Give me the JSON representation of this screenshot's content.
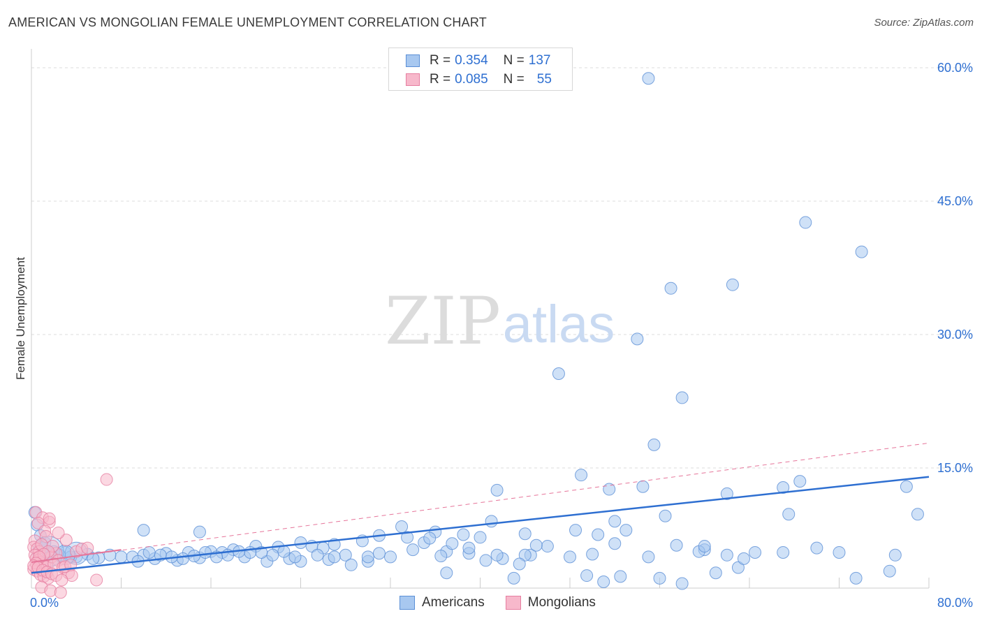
{
  "title": "AMERICAN VS MONGOLIAN FEMALE UNEMPLOYMENT CORRELATION CHART",
  "source": "Source: ZipAtlas.com",
  "watermark": {
    "zip": "ZIP",
    "atlas": "atlas"
  },
  "legend": {
    "rows": [
      {
        "r_label": "R =",
        "r_value": "0.354",
        "n_label": "N =",
        "n_value": "137"
      },
      {
        "r_label": "R =",
        "r_value": "0.085",
        "n_label": "N =",
        "n_value": "55"
      }
    ]
  },
  "chart_data": {
    "type": "scatter",
    "title": "AMERICAN VS MONGOLIAN FEMALE UNEMPLOYMENT CORRELATION CHART",
    "xlabel": "",
    "ylabel": "Female Unemployment",
    "xlim": [
      0,
      80
    ],
    "ylim": [
      0,
      63
    ],
    "x_tick_labels": [
      "0.0%",
      "80.0%"
    ],
    "y_ticks": [
      15,
      30,
      45,
      60
    ],
    "y_tick_labels": [
      "15.0%",
      "30.0%",
      "45.0%",
      "60.0%"
    ],
    "grid": true,
    "legend_position": "top-center",
    "series": [
      {
        "name": "Americans",
        "color": "#a8c8f0",
        "edge": "#5b8fd6",
        "trend_color": "#2e6fd1",
        "r": 0.354,
        "n": 137,
        "trend": {
          "x": [
            0,
            80
          ],
          "y": [
            3.2,
            14.0
          ],
          "style": "solid"
        },
        "points": [
          [
            55,
            58.8
          ],
          [
            69,
            42.6
          ],
          [
            74,
            39.3
          ],
          [
            57,
            35.2
          ],
          [
            62.5,
            35.6
          ],
          [
            54,
            29.5
          ],
          [
            47,
            25.6
          ],
          [
            58,
            22.9
          ],
          [
            55.5,
            17.6
          ],
          [
            49,
            14.2
          ],
          [
            41.5,
            12.5
          ],
          [
            51.5,
            12.6
          ],
          [
            54.5,
            12.9
          ],
          [
            62,
            12.1
          ],
          [
            67,
            12.8
          ],
          [
            68.5,
            13.5
          ],
          [
            78,
            12.9
          ],
          [
            10,
            8.0
          ],
          [
            15,
            7.8
          ],
          [
            33,
            8.4
          ],
          [
            36,
            7.8
          ],
          [
            41,
            9.0
          ],
          [
            44,
            7.6
          ],
          [
            40,
            7.2
          ],
          [
            38.5,
            7.5
          ],
          [
            35,
            6.6
          ],
          [
            33.5,
            7.2
          ],
          [
            31,
            7.4
          ],
          [
            29.5,
            6.8
          ],
          [
            27,
            6.4
          ],
          [
            25,
            6.2
          ],
          [
            24,
            6.6
          ],
          [
            26,
            6.0
          ],
          [
            22,
            6.1
          ],
          [
            20,
            6.2
          ],
          [
            18,
            5.8
          ],
          [
            16,
            5.6
          ],
          [
            14,
            5.5
          ],
          [
            12,
            5.4
          ],
          [
            10,
            5.2
          ],
          [
            8,
            5.0
          ],
          [
            6,
            4.9
          ],
          [
            5,
            5.3
          ],
          [
            4,
            5.0
          ],
          [
            3,
            5.5
          ],
          [
            2.5,
            5.2
          ],
          [
            2,
            5.6
          ],
          [
            1.5,
            5.4
          ],
          [
            1,
            6.0
          ],
          [
            0.5,
            8.6
          ],
          [
            0.3,
            10.0
          ],
          [
            0.8,
            7.4
          ],
          [
            1.2,
            6.6
          ],
          [
            3.5,
            5.0
          ],
          [
            5.5,
            4.8
          ],
          [
            7,
            5.2
          ],
          [
            9,
            5.0
          ],
          [
            11,
            4.8
          ],
          [
            13,
            4.6
          ],
          [
            15,
            4.9
          ],
          [
            17,
            5.5
          ],
          [
            19,
            5.0
          ],
          [
            21,
            4.5
          ],
          [
            23,
            4.8
          ],
          [
            26.5,
            4.7
          ],
          [
            28,
            5.2
          ],
          [
            30,
            4.5
          ],
          [
            32,
            5.0
          ],
          [
            34,
            5.8
          ],
          [
            37,
            5.6
          ],
          [
            39,
            5.4
          ],
          [
            42,
            4.8
          ],
          [
            44.5,
            5.2
          ],
          [
            46,
            6.2
          ],
          [
            48,
            5.0
          ],
          [
            50,
            5.3
          ],
          [
            52,
            6.5
          ],
          [
            55,
            5.0
          ],
          [
            57.5,
            6.3
          ],
          [
            60,
            5.8
          ],
          [
            62,
            5.2
          ],
          [
            63,
            3.8
          ],
          [
            61,
            3.2
          ],
          [
            58,
            2.0
          ],
          [
            56,
            2.6
          ],
          [
            52.5,
            2.8
          ],
          [
            51,
            2.2
          ],
          [
            49.5,
            2.9
          ],
          [
            43,
            2.6
          ],
          [
            37,
            3.2
          ],
          [
            48.5,
            8.0
          ],
          [
            50.5,
            7.5
          ],
          [
            52,
            9.0
          ],
          [
            53,
            8.0
          ],
          [
            56.5,
            9.6
          ],
          [
            67.5,
            9.8
          ],
          [
            79,
            9.8
          ],
          [
            72,
            5.5
          ],
          [
            73.5,
            2.6
          ],
          [
            76.5,
            3.4
          ],
          [
            77,
            5.2
          ],
          [
            70,
            6.0
          ],
          [
            67,
            5.5
          ],
          [
            64.5,
            5.5
          ],
          [
            63.5,
            4.8
          ],
          [
            59.5,
            5.6
          ],
          [
            60,
            6.2
          ],
          [
            45,
            6.3
          ],
          [
            44,
            5.2
          ],
          [
            43.5,
            4.2
          ],
          [
            41.5,
            5.2
          ],
          [
            40.5,
            4.6
          ],
          [
            39,
            6.0
          ],
          [
            37.5,
            6.5
          ],
          [
            36.5,
            5.1
          ],
          [
            35.5,
            7.1
          ],
          [
            31,
            5.4
          ],
          [
            30,
            5.0
          ],
          [
            28.5,
            4.1
          ],
          [
            27,
            5.0
          ],
          [
            25.5,
            5.2
          ],
          [
            24,
            4.5
          ],
          [
            23.5,
            5.0
          ],
          [
            22.5,
            5.6
          ],
          [
            21.5,
            5.2
          ],
          [
            20.5,
            5.5
          ],
          [
            19.5,
            5.5
          ],
          [
            18.5,
            5.6
          ],
          [
            17.5,
            5.2
          ],
          [
            16.5,
            5.0
          ],
          [
            15.5,
            5.5
          ],
          [
            14.5,
            5.1
          ],
          [
            13.5,
            4.8
          ],
          [
            12.5,
            5.0
          ],
          [
            11.5,
            5.2
          ],
          [
            10.5,
            5.5
          ],
          [
            9.5,
            4.5
          ]
        ]
      },
      {
        "name": "Mongolians",
        "color": "#f7b8cb",
        "edge": "#e67ea0",
        "trend_color": "#e6759a",
        "r": 0.085,
        "n": 55,
        "trend": {
          "x": [
            0,
            80
          ],
          "y": [
            4.4,
            17.8
          ],
          "style": "dashed"
        },
        "points": [
          [
            6.7,
            13.7
          ],
          [
            0.4,
            10.0
          ],
          [
            1.0,
            9.4
          ],
          [
            0.6,
            8.8
          ],
          [
            1.6,
            8.9
          ],
          [
            1.2,
            7.9
          ],
          [
            0.3,
            6.8
          ],
          [
            0.2,
            6.1
          ],
          [
            0.5,
            5.9
          ],
          [
            0.7,
            5.6
          ],
          [
            0.3,
            5.2
          ],
          [
            0.4,
            4.8
          ],
          [
            0.6,
            4.6
          ],
          [
            0.8,
            4.4
          ],
          [
            1.0,
            4.2
          ],
          [
            1.2,
            4.0
          ],
          [
            1.4,
            3.9
          ],
          [
            0.2,
            3.6
          ],
          [
            0.5,
            3.4
          ],
          [
            0.8,
            3.0
          ],
          [
            1.1,
            2.8
          ],
          [
            1.5,
            2.6
          ],
          [
            0.9,
            1.6
          ],
          [
            1.7,
            1.2
          ],
          [
            2.6,
            1.0
          ],
          [
            3.1,
            6.9
          ],
          [
            2.2,
            5.4
          ],
          [
            1.8,
            5.0
          ],
          [
            2.4,
            4.6
          ],
          [
            2.0,
            4.2
          ],
          [
            2.8,
            3.8
          ],
          [
            3.3,
            3.2
          ],
          [
            3.6,
            2.9
          ],
          [
            5.8,
            2.4
          ],
          [
            1.3,
            7.3
          ],
          [
            0.9,
            6.4
          ],
          [
            1.9,
            6.2
          ],
          [
            1.5,
            5.6
          ],
          [
            1.1,
            5.3
          ],
          [
            0.7,
            5.0
          ],
          [
            0.4,
            4.3
          ],
          [
            0.2,
            4.0
          ],
          [
            0.6,
            3.8
          ],
          [
            1.0,
            3.5
          ],
          [
            1.4,
            3.3
          ],
          [
            1.8,
            3.1
          ],
          [
            2.2,
            2.9
          ],
          [
            2.7,
            2.4
          ],
          [
            3.0,
            3.9
          ],
          [
            3.5,
            4.1
          ],
          [
            4.0,
            5.6
          ],
          [
            4.5,
            5.9
          ],
          [
            5.0,
            6.0
          ],
          [
            2.4,
            7.7
          ],
          [
            1.6,
            9.3
          ]
        ]
      }
    ]
  },
  "bottom_legend": [
    {
      "label": "Americans"
    },
    {
      "label": "Mongolians"
    }
  ]
}
